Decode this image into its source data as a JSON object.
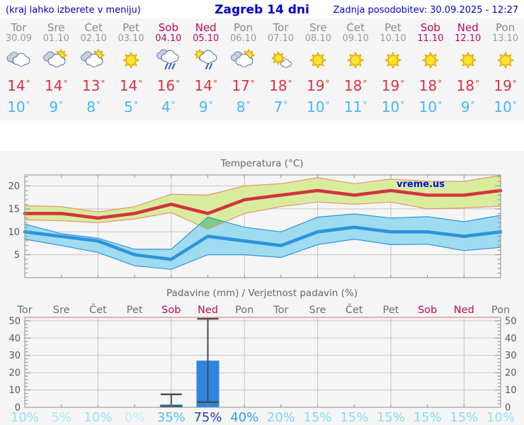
{
  "header": {
    "left_note": "(kraj lahko izberete v meniju)",
    "title": "Zagreb 14 dni",
    "updated": "Zadnja posodobitev: 30.09.2025 - 12:27"
  },
  "units": {
    "degree": "°"
  },
  "colors": {
    "header_text": "#0000cc",
    "weekday_text": "#8a8a8a",
    "weekend_text": "#b80b56",
    "temp_high": "#d8333f",
    "temp_low": "#45b6f7",
    "panel_background": "#f5f5f6"
  },
  "forecast_days": [
    {
      "day": "Tor",
      "date": "30.09",
      "weekend": false,
      "icon": "cloudy",
      "high": "14",
      "low": "10"
    },
    {
      "day": "Sre",
      "date": "01.10",
      "weekend": false,
      "icon": "sun-cloud",
      "high": "14",
      "low": "9"
    },
    {
      "day": "Čet",
      "date": "02.10",
      "weekend": false,
      "icon": "sun-cloud",
      "high": "13",
      "low": "8"
    },
    {
      "day": "Pet",
      "date": "03.10",
      "weekend": false,
      "icon": "sun",
      "high": "14",
      "low": "5"
    },
    {
      "day": "Sob",
      "date": "04.10",
      "weekend": true,
      "icon": "rain",
      "high": "16",
      "low": "4"
    },
    {
      "day": "Ned",
      "date": "05.10",
      "weekend": true,
      "icon": "sun-rain",
      "high": "14",
      "low": "9"
    },
    {
      "day": "Pon",
      "date": "06.10",
      "weekend": false,
      "icon": "sun-cloud",
      "high": "17",
      "low": "8"
    },
    {
      "day": "Tor",
      "date": "07.10",
      "weekend": false,
      "icon": "sun-small-cloud",
      "high": "18",
      "low": "7"
    },
    {
      "day": "Sre",
      "date": "08.10",
      "weekend": false,
      "icon": "sun",
      "high": "19",
      "low": "10"
    },
    {
      "day": "Čet",
      "date": "09.10",
      "weekend": false,
      "icon": "sun",
      "high": "18",
      "low": "11"
    },
    {
      "day": "Pet",
      "date": "10.10",
      "weekend": false,
      "icon": "sun",
      "high": "19",
      "low": "10"
    },
    {
      "day": "Sob",
      "date": "11.10",
      "weekend": true,
      "icon": "sun",
      "high": "18",
      "low": "10"
    },
    {
      "day": "Ned",
      "date": "12.10",
      "weekend": true,
      "icon": "sun",
      "high": "18",
      "low": "9"
    },
    {
      "day": "Pon",
      "date": "13.10",
      "weekend": false,
      "icon": "sun",
      "high": "19",
      "low": "10"
    }
  ],
  "chart_data": [
    {
      "type": "line",
      "title": "Temperatura (°C)",
      "watermark": "vreme.us",
      "x_categories": [
        "Tor",
        "Sre",
        "Čet",
        "Pet",
        "Sob",
        "Ned",
        "Pon",
        "Tor",
        "Sre",
        "Čet",
        "Pet",
        "Sob",
        "Ned",
        "Pon"
      ],
      "ylim": [
        0,
        22.4
      ],
      "yticks": [
        5,
        10,
        15,
        20
      ],
      "grid_days": [
        3,
        5,
        7,
        9,
        11,
        13
      ],
      "legend_position": "none",
      "series": [
        {
          "name": "max-temperature",
          "color": "#d2343e",
          "values": [
            14,
            14,
            13,
            14,
            16,
            14,
            17,
            18,
            19,
            18,
            19,
            18,
            18,
            19
          ]
        },
        {
          "name": "min-temperature",
          "color": "#2e93dc",
          "values": [
            10,
            9,
            8,
            5,
            4,
            9,
            8,
            7,
            10,
            11,
            10,
            10,
            9,
            10
          ]
        }
      ],
      "bands": [
        {
          "name": "max-temperature-range",
          "fill": "#d9ec9e",
          "edge": "#e5936b",
          "upper": [
            15.7,
            15.5,
            14.3,
            15.5,
            18.2,
            18,
            20,
            20.5,
            21.8,
            20.5,
            21.5,
            21,
            21,
            22.3
          ],
          "lower": [
            12.6,
            12.4,
            12,
            12.8,
            14.2,
            10.6,
            14,
            15.5,
            16.5,
            16,
            16.5,
            15,
            15.2,
            15.6
          ]
        },
        {
          "name": "min-temperature-range",
          "fill": "#9fdcf0",
          "edge": "#2e93dc",
          "upper": [
            11.7,
            9.6,
            8.6,
            6.2,
            6.2,
            13.2,
            11,
            10,
            13.2,
            13.9,
            13,
            13.3,
            12.2,
            13.6
          ],
          "lower": [
            8.4,
            7,
            5.5,
            2.6,
            1.8,
            5,
            5,
            4.4,
            7.2,
            8.4,
            7.2,
            7.3,
            5.9,
            6.6
          ]
        }
      ],
      "overlap_fill": "#7ccc84"
    },
    {
      "type": "bar",
      "title": "Padavine (mm) / Verjetnost padavin (%)",
      "categories": [
        "Tor",
        "Sre",
        "Čet",
        "Pet",
        "Sob",
        "Ned",
        "Pon",
        "Tor",
        "Sre",
        "Čet",
        "Pet",
        "Sob",
        "Ned",
        "Pon"
      ],
      "ylim": [
        0,
        52
      ],
      "yticks": [
        0,
        10,
        20,
        30,
        40,
        50
      ],
      "grid_days": [
        3,
        5,
        7,
        9,
        11,
        13
      ],
      "bar_color": "#2e86e0",
      "bars": [
        {
          "day": 5,
          "label": "Sob",
          "value": 1.6,
          "whisker_low": 0.5,
          "whisker_high": 7.5
        },
        {
          "day": 6,
          "label": "Ned",
          "value": 27,
          "whisker_low": 3,
          "whisker_high": 51.2
        }
      ],
      "probabilities": [
        {
          "value": "10%",
          "color": "#93e0f7"
        },
        {
          "value": "5%",
          "color": "#a9e8f9"
        },
        {
          "value": "10%",
          "color": "#93e0f7"
        },
        {
          "value": "0%",
          "color": "#b9eefb"
        },
        {
          "value": "35%",
          "color": "#4cc2ee"
        },
        {
          "value": "75%",
          "color": "#2438c8"
        },
        {
          "value": "40%",
          "color": "#2f9de8"
        },
        {
          "value": "20%",
          "color": "#79d6f3"
        },
        {
          "value": "15%",
          "color": "#86dbf5"
        },
        {
          "value": "15%",
          "color": "#86dbf5"
        },
        {
          "value": "15%",
          "color": "#86dbf5"
        },
        {
          "value": "15%",
          "color": "#86dbf5"
        },
        {
          "value": "15%",
          "color": "#86dbf5"
        },
        {
          "value": "10%",
          "color": "#93e0f7"
        }
      ]
    }
  ]
}
